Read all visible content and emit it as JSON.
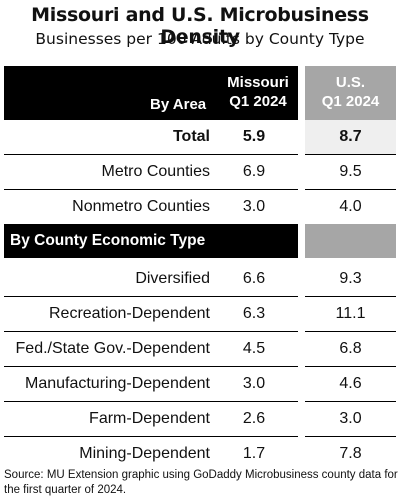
{
  "title": "Missouri and U.S. Microbusiness Density",
  "subtitle": "Businesses per 100 Adults by County Type",
  "header": {
    "by_area": "By Area",
    "missouri_line1": "Missouri",
    "missouri_line2": "Q1 2024",
    "us_line1": "U.S.",
    "us_line2": "Q1 2024"
  },
  "section2_label": "By County Economic Type",
  "source": "Source: MU Extension graphic using GoDaddy Microbusiness county data for the first quarter of 2024.",
  "chart_data": {
    "type": "table",
    "columns": [
      "Missouri Q1 2024",
      "U.S. Q1 2024"
    ],
    "by_area": [
      {
        "label": "Total",
        "missouri": "5.9",
        "us": "8.7"
      },
      {
        "label": "Metro Counties",
        "missouri": "6.9",
        "us": "9.5"
      },
      {
        "label": "Nonmetro Counties",
        "missouri": "3.0",
        "us": "4.0"
      }
    ],
    "by_county_type": [
      {
        "label": "Diversified",
        "missouri": "6.6",
        "us": "9.3"
      },
      {
        "label": "Recreation-Dependent",
        "missouri": "6.3",
        "us": "11.1"
      },
      {
        "label": "Fed./State Gov.-Dependent",
        "missouri": "4.5",
        "us": "6.8"
      },
      {
        "label": "Manufacturing-Dependent",
        "missouri": "3.0",
        "us": "4.6"
      },
      {
        "label": "Farm-Dependent",
        "missouri": "2.6",
        "us": "3.0"
      },
      {
        "label": "Mining-Dependent",
        "missouri": "1.7",
        "us": "7.8"
      }
    ]
  }
}
